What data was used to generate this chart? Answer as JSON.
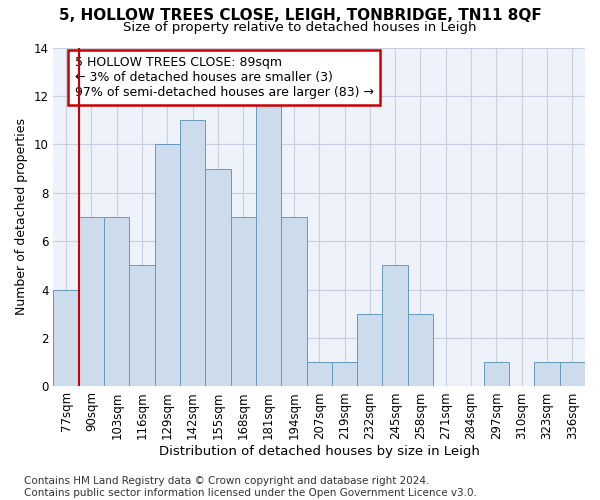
{
  "title": "5, HOLLOW TREES CLOSE, LEIGH, TONBRIDGE, TN11 8QF",
  "subtitle": "Size of property relative to detached houses in Leigh",
  "xlabel": "Distribution of detached houses by size in Leigh",
  "ylabel": "Number of detached properties",
  "bar_labels": [
    "77sqm",
    "90sqm",
    "103sqm",
    "116sqm",
    "129sqm",
    "142sqm",
    "155sqm",
    "168sqm",
    "181sqm",
    "194sqm",
    "207sqm",
    "219sqm",
    "232sqm",
    "245sqm",
    "258sqm",
    "271sqm",
    "284sqm",
    "297sqm",
    "310sqm",
    "323sqm",
    "336sqm"
  ],
  "bar_values": [
    4,
    7,
    7,
    5,
    10,
    11,
    9,
    7,
    12,
    7,
    1,
    1,
    3,
    5,
    3,
    0,
    0,
    1,
    0,
    1,
    1
  ],
  "bar_color": "#ccdcec",
  "bar_edge_color": "#6699bb",
  "red_line_index": 1,
  "red_line_color": "#cc0000",
  "annotation_text": "5 HOLLOW TREES CLOSE: 89sqm\n← 3% of detached houses are smaller (3)\n97% of semi-detached houses are larger (83) →",
  "annotation_box_color": "#ffffff",
  "annotation_box_edge": "#cc0000",
  "ylim": [
    0,
    14
  ],
  "yticks": [
    0,
    2,
    4,
    6,
    8,
    10,
    12,
    14
  ],
  "grid_color": "#c8d0e0",
  "background_color": "#eef2fa",
  "footer_text": "Contains HM Land Registry data © Crown copyright and database right 2024.\nContains public sector information licensed under the Open Government Licence v3.0.",
  "title_fontsize": 11,
  "subtitle_fontsize": 9.5,
  "xlabel_fontsize": 9.5,
  "ylabel_fontsize": 9,
  "tick_fontsize": 8.5,
  "annotation_fontsize": 9,
  "footer_fontsize": 7.5
}
